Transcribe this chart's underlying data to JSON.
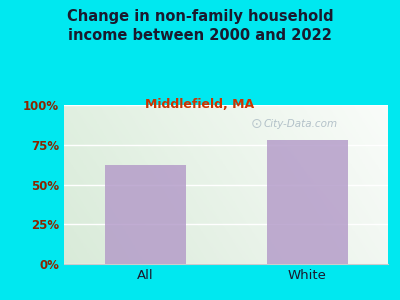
{
  "title": "Change in non-family household\nincome between 2000 and 2022",
  "subtitle": "Middlefield, MA",
  "categories": [
    "All",
    "White"
  ],
  "values": [
    62,
    78
  ],
  "bar_color": "#b39ac8",
  "title_color": "#1a1a2e",
  "subtitle_color": "#cc3300",
  "tick_color": "#8b2500",
  "xtick_color": "#1a1a2e",
  "background_outer": "#00e8f0",
  "ylim": [
    0,
    100
  ],
  "yticks": [
    0,
    25,
    50,
    75,
    100
  ],
  "watermark": "City-Data.com"
}
